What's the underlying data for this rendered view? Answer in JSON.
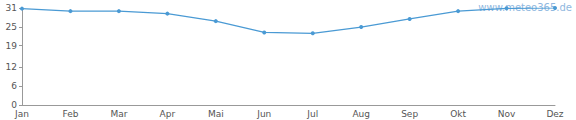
{
  "chart_data": {
    "type": "line",
    "annotation": "www.meteo365.de",
    "categories": [
      "Jan",
      "Feb",
      "Mar",
      "Apr",
      "Mai",
      "Jun",
      "Jul",
      "Aug",
      "Sep",
      "Okt",
      "Nov",
      "Dez"
    ],
    "values": [
      30.8,
      30.0,
      30.0,
      29.2,
      26.8,
      23.2,
      22.9,
      24.9,
      27.5,
      30.0,
      30.9,
      31.0
    ],
    "color": "#4a9ad4",
    "marker": "circle",
    "ylim": [
      0,
      31
    ],
    "yticks": [
      0,
      6,
      12,
      19,
      25,
      31
    ],
    "grid": false
  }
}
